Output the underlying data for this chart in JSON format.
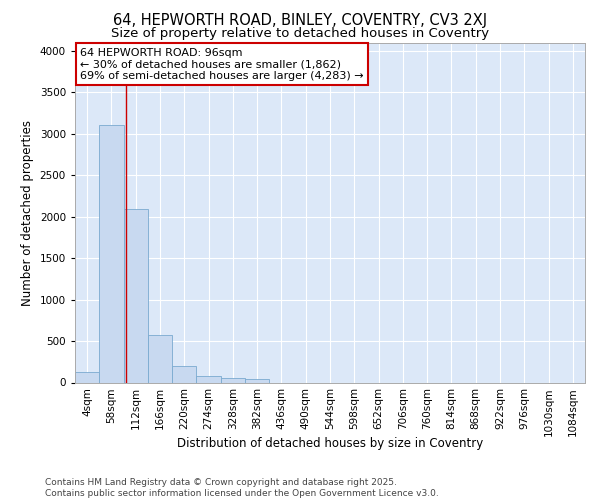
{
  "title_line1": "64, HEPWORTH ROAD, BINLEY, COVENTRY, CV3 2XJ",
  "title_line2": "Size of property relative to detached houses in Coventry",
  "xlabel": "Distribution of detached houses by size in Coventry",
  "ylabel": "Number of detached properties",
  "bar_color": "#c8d9f0",
  "bar_edge_color": "#7aaad0",
  "background_color": "#dce8f8",
  "grid_color": "#ffffff",
  "categories": [
    "4sqm",
    "58sqm",
    "112sqm",
    "166sqm",
    "220sqm",
    "274sqm",
    "328sqm",
    "382sqm",
    "436sqm",
    "490sqm",
    "544sqm",
    "598sqm",
    "652sqm",
    "706sqm",
    "760sqm",
    "814sqm",
    "868sqm",
    "922sqm",
    "976sqm",
    "1030sqm",
    "1084sqm"
  ],
  "values": [
    130,
    3100,
    2090,
    570,
    200,
    75,
    55,
    40,
    0,
    0,
    0,
    0,
    0,
    0,
    0,
    0,
    0,
    0,
    0,
    0,
    0
  ],
  "ylim": [
    0,
    4100
  ],
  "yticks": [
    0,
    500,
    1000,
    1500,
    2000,
    2500,
    3000,
    3500,
    4000
  ],
  "property_label": "64 HEPWORTH ROAD: 96sqm",
  "annotation_line1": "← 30% of detached houses are smaller (1,862)",
  "annotation_line2": "69% of semi-detached houses are larger (4,283) →",
  "vline_color": "#cc0000",
  "vline_pos": 1.62,
  "annotation_box_edge": "#cc0000",
  "footer_line1": "Contains HM Land Registry data © Crown copyright and database right 2025.",
  "footer_line2": "Contains public sector information licensed under the Open Government Licence v3.0.",
  "title_fontsize": 10.5,
  "subtitle_fontsize": 9.5,
  "axis_label_fontsize": 8.5,
  "tick_fontsize": 7.5,
  "annotation_fontsize": 8,
  "footer_fontsize": 6.5
}
